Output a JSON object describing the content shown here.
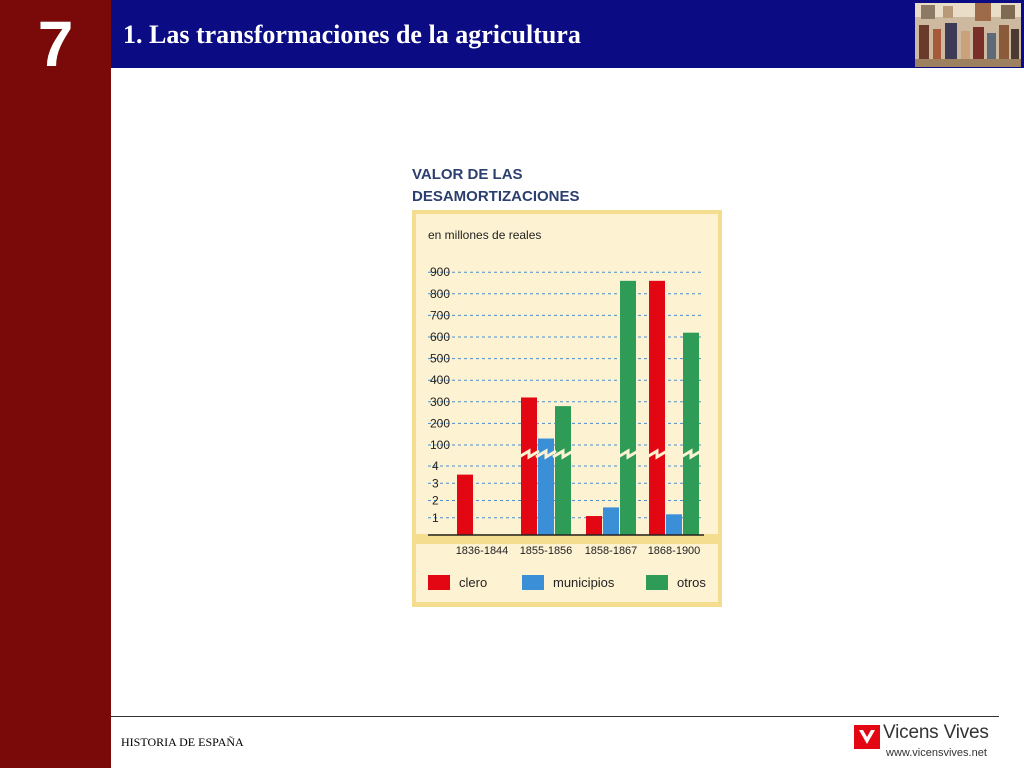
{
  "sidebar": {
    "chapter_number": "7",
    "color": "#7a0a0a"
  },
  "header": {
    "title": "1. Las transformaciones de la agricultura",
    "color": "#0b0b83"
  },
  "footer": {
    "book_title": "HISTORIA DE ESPAÑA"
  },
  "brand": {
    "name": "Vicens Vives",
    "url": "www.vicensvives.net",
    "color": "#e30613"
  },
  "colors": {
    "clero": "#e30613",
    "municipios": "#3b8fd6",
    "otros": "#2e9b57",
    "panel": "#fdf3d3",
    "frame": "#f4dd8f"
  },
  "chart_data": {
    "type": "bar",
    "title_line1": "VALOR DE LAS",
    "title_line2": "DESAMORTIZACIONES",
    "ylabel": "en millones de reales",
    "y_ticks_low": [
      "1",
      "2",
      "3",
      "4"
    ],
    "y_ticks_high": [
      "100",
      "200",
      "300",
      "400",
      "500",
      "600",
      "700",
      "800",
      "900"
    ],
    "axis_break": true,
    "categories": [
      "1836-1844",
      "1855-1856",
      "1858-1867",
      "1868-1900"
    ],
    "series": [
      {
        "name": "clero",
        "values": [
          3.5,
          320,
          1.1,
          860
        ]
      },
      {
        "name": "municipios",
        "values": [
          null,
          130,
          1.6,
          1.2
        ]
      },
      {
        "name": "otros",
        "values": [
          null,
          280,
          860,
          620
        ]
      }
    ]
  }
}
